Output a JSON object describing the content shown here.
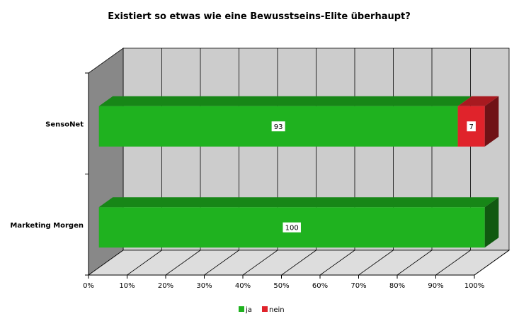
{
  "chart_data": {
    "type": "bar",
    "orientation": "horizontal",
    "stacked": true,
    "percent_stacked": true,
    "three_d": true,
    "title": "Existiert so etwas wie eine Bewusstseins-Elite überhaupt?",
    "categories": [
      "SensoNet",
      "Marketing Morgen"
    ],
    "series": [
      {
        "name": "ja",
        "values": [
          93,
          100
        ],
        "color": "#1fb21f"
      },
      {
        "name": "nein",
        "values": [
          7,
          0
        ],
        "color": "#e0232b"
      }
    ],
    "x_ticks": [
      "0%",
      "10%",
      "20%",
      "30%",
      "40%",
      "50%",
      "60%",
      "70%",
      "80%",
      "90%",
      "100%"
    ],
    "xlim": [
      0,
      100
    ],
    "grid": true,
    "legend_position": "bottom",
    "colors": {
      "back_wall": "#cccccc",
      "side_wall": "#888888",
      "floor": "#dddddd"
    }
  }
}
